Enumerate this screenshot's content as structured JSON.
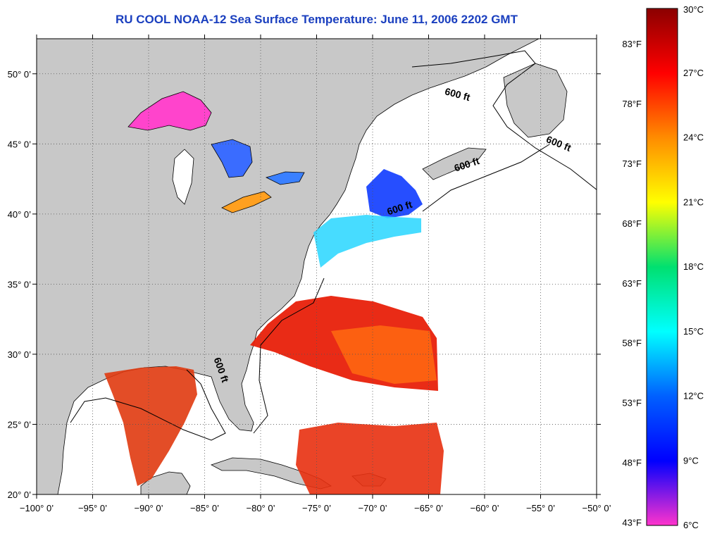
{
  "title": "RU COOL  NOAA-12  Sea Surface Temperature:  June 11, 2006 2202 GMT",
  "map": {
    "lon_range": [
      -100,
      -50
    ],
    "lat_range": [
      20,
      52.5
    ],
    "lon_ticks": [
      {
        "value": -100,
        "label": "−100° 0’"
      },
      {
        "value": -95,
        "label": "−95° 0’"
      },
      {
        "value": -90,
        "label": "−90° 0’"
      },
      {
        "value": -85,
        "label": "−85° 0’"
      },
      {
        "value": -80,
        "label": "−80° 0’"
      },
      {
        "value": -75,
        "label": "−75° 0’"
      },
      {
        "value": -70,
        "label": "−70° 0’"
      },
      {
        "value": -65,
        "label": "−65° 0’"
      },
      {
        "value": -60,
        "label": "−60° 0’"
      },
      {
        "value": -55,
        "label": "−55° 0’"
      },
      {
        "value": -50,
        "label": "−50° 0’"
      }
    ],
    "lat_ticks": [
      {
        "value": 20,
        "label": "20° 0’"
      },
      {
        "value": 25,
        "label": "25° 0’"
      },
      {
        "value": 30,
        "label": "30° 0’"
      },
      {
        "value": 35,
        "label": "35° 0’"
      },
      {
        "value": 40,
        "label": "40° 0’"
      },
      {
        "value": 45,
        "label": "45° 0’"
      },
      {
        "value": 50,
        "label": "50° 0’"
      }
    ],
    "contour_labels": [
      {
        "text": "600 ft",
        "lon": -62.5,
        "lat": 48.3,
        "rotate": 15
      },
      {
        "text": "600 ft",
        "lon": -53.5,
        "lat": 44.8,
        "rotate": 22
      },
      {
        "text": "600 ft",
        "lon": -61.5,
        "lat": 43.3,
        "rotate": -18
      },
      {
        "text": "600 ft",
        "lon": -67.5,
        "lat": 40.2,
        "rotate": -18
      },
      {
        "text": "600 ft",
        "lon": -83.8,
        "lat": 28.8,
        "rotate": 70
      }
    ],
    "colors": {
      "land": "#c8c8c8",
      "ocean": "#ffffff",
      "grid": "#555555"
    }
  },
  "colorbar": {
    "celsius": [
      {
        "value": 30,
        "label": "30°C"
      },
      {
        "value": 27,
        "label": "27°C"
      },
      {
        "value": 24,
        "label": "24°C"
      },
      {
        "value": 21,
        "label": "21°C"
      },
      {
        "value": 18,
        "label": "18°C"
      },
      {
        "value": 15,
        "label": "15°C"
      },
      {
        "value": 12,
        "label": "12°C"
      },
      {
        "value": 9,
        "label": "9°C"
      },
      {
        "value": 6,
        "label": "6°C"
      }
    ],
    "fahrenheit": [
      {
        "value": 83,
        "label": "83°F"
      },
      {
        "value": 78,
        "label": "78°F"
      },
      {
        "value": 73,
        "label": "73°F"
      },
      {
        "value": 68,
        "label": "68°F"
      },
      {
        "value": 63,
        "label": "63°F"
      },
      {
        "value": 58,
        "label": "58°F"
      },
      {
        "value": 53,
        "label": "53°F"
      },
      {
        "value": 48,
        "label": "48°F"
      },
      {
        "value": 43,
        "label": "43°F"
      }
    ],
    "gradient": [
      "#8b0000",
      "#ff0000",
      "#ff8c00",
      "#ffff00",
      "#00e070",
      "#00ffff",
      "#0060ff",
      "#0000ff",
      "#ff33cc"
    ]
  }
}
